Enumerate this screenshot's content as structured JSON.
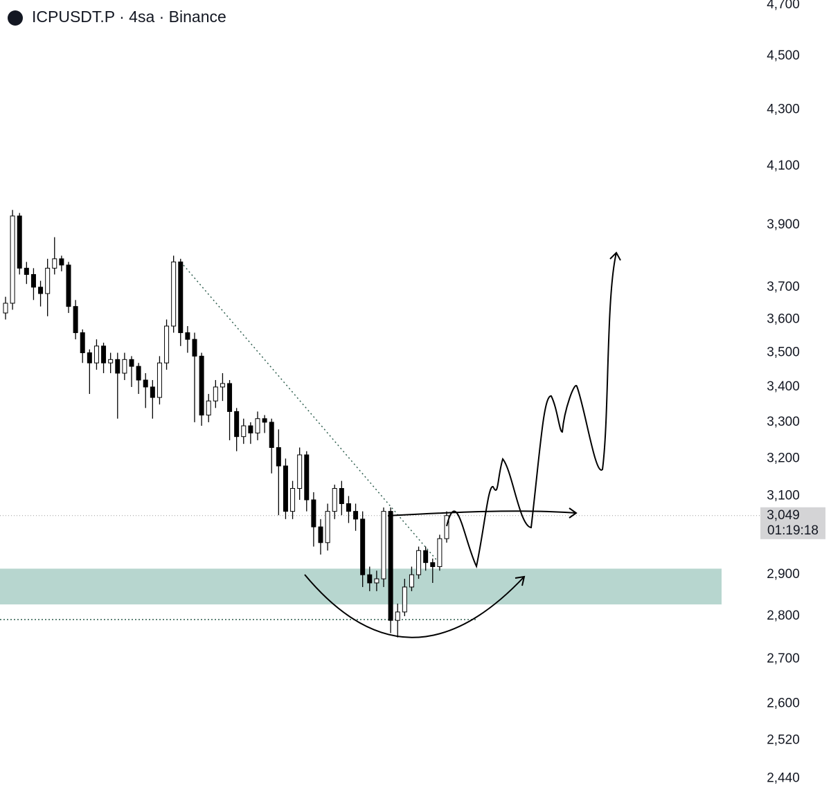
{
  "chart_data": {
    "type": "candlestick",
    "title": "ICPUSDT.P · 4sa · Binance",
    "log": true,
    "ylim": [
      2376,
      4719
    ],
    "yticks": [
      {
        "value": 4700,
        "label": "4,700"
      },
      {
        "value": 4500,
        "label": "4,500"
      },
      {
        "value": 4300,
        "label": "4,300"
      },
      {
        "value": 4100,
        "label": "4,100"
      },
      {
        "value": 3900,
        "label": "3,900"
      },
      {
        "value": 3700,
        "label": "3,700"
      },
      {
        "value": 3600,
        "label": "3,600"
      },
      {
        "value": 3500,
        "label": "3,500"
      },
      {
        "value": 3400,
        "label": "3,400"
      },
      {
        "value": 3300,
        "label": "3,300"
      },
      {
        "value": 3200,
        "label": "3,200"
      },
      {
        "value": 3100,
        "label": "3,100"
      },
      {
        "value": 2900,
        "label": "2,900"
      },
      {
        "value": 2800,
        "label": "2,800"
      },
      {
        "value": 2700,
        "label": "2,700"
      },
      {
        "value": 2600,
        "label": "2,600"
      },
      {
        "value": 2520,
        "label": "2,520"
      },
      {
        "value": 2440,
        "label": "2,440"
      }
    ],
    "up_color": "#ffffff",
    "down_color": "#000000",
    "open": [
      3620,
      3650,
      3930,
      3760,
      3740,
      3700,
      3680,
      3760,
      3790,
      3770,
      3640,
      3560,
      3500,
      3470,
      3520,
      3470,
      3480,
      3440,
      3480,
      3460,
      3420,
      3400,
      3370,
      3470,
      3580,
      3780,
      3560,
      3540,
      3490,
      3320,
      3360,
      3400,
      3410,
      3330,
      3260,
      3290,
      3270,
      3310,
      3300,
      3230,
      3180,
      3060,
      3120,
      3210,
      3090,
      3020,
      2980,
      3060,
      3120,
      3080,
      3060,
      3040,
      2900,
      2880,
      2890,
      3060,
      2790,
      2810,
      2870,
      2900,
      2960,
      2930,
      2920,
      2990
    ],
    "high": [
      3670,
      3950,
      3940,
      3780,
      3760,
      3720,
      3790,
      3860,
      3800,
      3780,
      3660,
      3570,
      3510,
      3540,
      3530,
      3500,
      3500,
      3500,
      3490,
      3470,
      3440,
      3420,
      3490,
      3600,
      3800,
      3790,
      3580,
      3560,
      3500,
      3380,
      3420,
      3440,
      3420,
      3340,
      3310,
      3300,
      3330,
      3320,
      3310,
      3280,
      3200,
      3140,
      3230,
      3220,
      3110,
      3040,
      3080,
      3130,
      3140,
      3100,
      3080,
      3060,
      2920,
      2910,
      3070,
      3070,
      2830,
      2890,
      2920,
      2970,
      2970,
      2940,
      3000,
      3060
    ],
    "low": [
      3600,
      3630,
      3740,
      3710,
      3660,
      3640,
      3610,
      3740,
      3750,
      3620,
      3540,
      3470,
      3380,
      3450,
      3440,
      3440,
      3310,
      3420,
      3400,
      3380,
      3340,
      3310,
      3350,
      3450,
      3560,
      3520,
      3500,
      3300,
      3290,
      3300,
      3340,
      3360,
      3250,
      3220,
      3240,
      3240,
      3250,
      3270,
      3160,
      3050,
      3040,
      3040,
      3090,
      3060,
      2970,
      2950,
      2960,
      3040,
      3050,
      3030,
      3010,
      2870,
      2860,
      2860,
      2870,
      2760,
      2750,
      2800,
      2860,
      2890,
      2910,
      2880,
      2910,
      2980
    ],
    "close": [
      3650,
      3930,
      3760,
      3740,
      3700,
      3680,
      3760,
      3790,
      3770,
      3640,
      3560,
      3500,
      3470,
      3520,
      3470,
      3480,
      3440,
      3480,
      3460,
      3420,
      3400,
      3370,
      3470,
      3580,
      3780,
      3560,
      3540,
      3490,
      3320,
      3360,
      3400,
      3410,
      3330,
      3260,
      3290,
      3270,
      3310,
      3300,
      3230,
      3180,
      3060,
      3120,
      3210,
      3090,
      3020,
      2980,
      3060,
      3120,
      3080,
      3060,
      3040,
      2900,
      2880,
      2890,
      3060,
      2790,
      2810,
      2870,
      2900,
      2960,
      2930,
      2920,
      2990,
      3049
    ],
    "last_price": {
      "value": 3049,
      "label": "3,049"
    },
    "countdown": "01:19:18",
    "zone": {
      "low": 2828,
      "high": 2915,
      "color": "#b7d6cf"
    },
    "support_line": 2792
  }
}
